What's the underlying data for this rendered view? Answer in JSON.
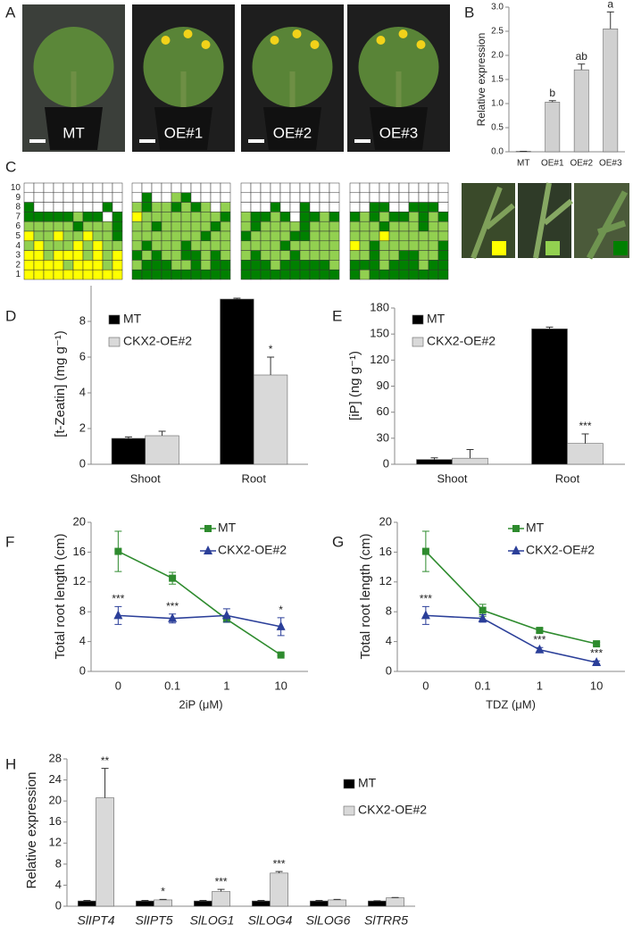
{
  "panels": {
    "photos": "A",
    "grids": "C"
  },
  "photos": {
    "labels": [
      "MT",
      "OE#1",
      "OE#2",
      "OE#3"
    ]
  },
  "grids": {
    "row_labels": [
      10,
      9,
      8,
      7,
      6,
      5,
      4,
      3,
      2,
      1
    ],
    "palette": {
      "w": "#ffffff",
      "y": "#ffff00",
      "l": "#92d050",
      "d": "#008000"
    },
    "patterns": [
      [
        "wwwwwwwwww",
        "wwwwwwwwww",
        "dwwwwwwwdw",
        "dddddlddwd",
        "llllldllld",
        "yllyllylld",
        "lylllylyll",
        "yylyyylyly",
        "yyyylyyyly",
        "yyyyyyyyyy"
      ],
      [
        "wwwwwwwwww",
        "wdwwldwwww",
        "ldlldldlwl",
        "ylllllllld",
        "lldllllldl",
        "llllllldll",
        "ldllldllll",
        "dldllddldl",
        "ldddlldldd",
        "dddddddddd"
      ],
      [
        "wwwwwwwwww",
        "wwwwwwwwww",
        "wwwdwwdwww",
        "lddldwddld",
        "ldlllldlll",
        "dllllddlll",
        "lllldlllll",
        "ldllldllll",
        "dddldddddl",
        "dddddddddd"
      ],
      [
        "wwwwwwwwww",
        "wwwwwwwwww",
        "wwddwwdddw",
        "dldlddldld",
        "llldllldll",
        "lllyllllll",
        "yldlllllld",
        "lldllddlld",
        "dddldddldd",
        "dldddddddd"
      ]
    ]
  },
  "chart_data": [
    {
      "type": "bar",
      "label": "B",
      "ylabel": "Relative expression",
      "categories": [
        "MT",
        "OE#1",
        "OE#2",
        "OE#3"
      ],
      "values": [
        0.01,
        1.03,
        1.7,
        2.55
      ],
      "errors": [
        0.0,
        0.03,
        0.12,
        0.35
      ],
      "annotations": [
        null,
        "b",
        "ab",
        "a"
      ],
      "color": "#d0d0d0",
      "ylim": [
        0,
        3
      ],
      "yticks": [
        {
          "value": 0,
          "label": "0.0"
        },
        {
          "value": 0.5,
          "label": "0.5"
        },
        {
          "value": 1,
          "label": "1.0"
        },
        {
          "value": 1.5,
          "label": "1.5"
        },
        {
          "value": 2,
          "label": "2.0"
        },
        {
          "value": 2.5,
          "label": "2.5"
        },
        {
          "value": 3,
          "label": "3.0"
        }
      ]
    },
    {
      "type": "bar",
      "label": "D",
      "ylabel": "[t-Zeatin] (mg g⁻¹)",
      "categories": [
        "Shoot",
        "Root"
      ],
      "series": [
        {
          "name": "MT",
          "color": "#000000",
          "values": [
            1.45,
            9.25
          ],
          "errors": [
            0.08,
            0.05
          ],
          "annotations": [
            null,
            null
          ]
        },
        {
          "name": "CKX2-OE#2",
          "color": "#d9d9d9",
          "values": [
            1.6,
            5.0
          ],
          "errors": [
            0.25,
            1.0
          ],
          "annotations": [
            null,
            "*"
          ]
        }
      ],
      "ylim": [
        0,
        10
      ],
      "yticks": [
        0,
        2,
        4,
        6,
        8
      ]
    },
    {
      "type": "bar",
      "label": "E",
      "ylabel": "[iP] (ng g⁻¹)",
      "categories": [
        "Shoot",
        "Root"
      ],
      "series": [
        {
          "name": "MT",
          "color": "#000000",
          "values": [
            5.5,
            156
          ],
          "errors": [
            2,
            2
          ],
          "annotations": [
            null,
            null
          ]
        },
        {
          "name": "CKX2-OE#2",
          "color": "#d9d9d9",
          "values": [
            7,
            24
          ],
          "errors": [
            10,
            11
          ],
          "annotations": [
            null,
            "***"
          ]
        }
      ],
      "ylim": [
        0,
        180
      ],
      "yticks": [
        0,
        30,
        60,
        90,
        120,
        150,
        180
      ]
    },
    {
      "type": "line",
      "label": "F",
      "ylabel": "Total root length (cm)",
      "xlabel": "2iP (μM)",
      "categories": [
        "0",
        "0.1",
        "1",
        "10"
      ],
      "series": [
        {
          "name": "MT",
          "color": "#2e8b2e",
          "marker": "square",
          "values": [
            16.1,
            12.5,
            7.0,
            2.2
          ],
          "errors": [
            2.7,
            0.8,
            0.3,
            0.1
          ]
        },
        {
          "name": "CKX2-OE#2",
          "color": "#2b3f99",
          "marker": "triangle",
          "values": [
            7.5,
            7.1,
            7.5,
            6.0
          ],
          "errors": [
            1.2,
            0.6,
            0.9,
            1.2
          ],
          "annotations": [
            "***",
            "***",
            null,
            "*"
          ]
        }
      ],
      "ylim": [
        0,
        20
      ],
      "yticks": [
        0,
        4,
        8,
        12,
        16,
        20
      ]
    },
    {
      "type": "line",
      "label": "G",
      "ylabel": "Total root length (cm)",
      "xlabel": "TDZ (μM)",
      "categories": [
        "0",
        "0.1",
        "1",
        "10"
      ],
      "series": [
        {
          "name": "MT",
          "color": "#2e8b2e",
          "marker": "square",
          "values": [
            16.1,
            8.2,
            5.5,
            3.7
          ],
          "errors": [
            2.7,
            0.8,
            0.3,
            0.2
          ]
        },
        {
          "name": "CKX2-OE#2",
          "color": "#2b3f99",
          "marker": "triangle",
          "values": [
            7.5,
            7.1,
            2.9,
            1.2
          ],
          "errors": [
            1.2,
            0.5,
            0.3,
            0.2
          ],
          "annotations": [
            "***",
            null,
            "***",
            "***"
          ]
        }
      ],
      "ylim": [
        0,
        20
      ],
      "yticks": [
        0,
        4,
        8,
        12,
        16,
        20
      ]
    },
    {
      "type": "bar",
      "label": "H",
      "ylabel": "Relative expression",
      "category_style": "italic",
      "categories": [
        "SlIPT4",
        "SlIPT5",
        "SlLOG1",
        "SlLOG4",
        "SlLOG6",
        "SlTRR5"
      ],
      "series": [
        {
          "name": "MT",
          "color": "#000000",
          "values": [
            1,
            1,
            1,
            1,
            1,
            1
          ],
          "errors": [
            0.1,
            0.1,
            0.1,
            0.1,
            0.1,
            0.05
          ],
          "annotations": [
            null,
            null,
            null,
            null,
            null,
            null
          ]
        },
        {
          "name": "CKX2-OE#2",
          "color": "#d9d9d9",
          "values": [
            20.6,
            1.2,
            2.8,
            6.3,
            1.2,
            1.6
          ],
          "errors": [
            5.6,
            0.1,
            0.4,
            0.3,
            0.1,
            0.05
          ],
          "annotations": [
            "**",
            "*",
            "***",
            "***",
            null,
            null
          ]
        }
      ],
      "ylim": [
        0,
        28
      ],
      "yticks": [
        0,
        4,
        8,
        12,
        16,
        20,
        24,
        28
      ]
    }
  ]
}
